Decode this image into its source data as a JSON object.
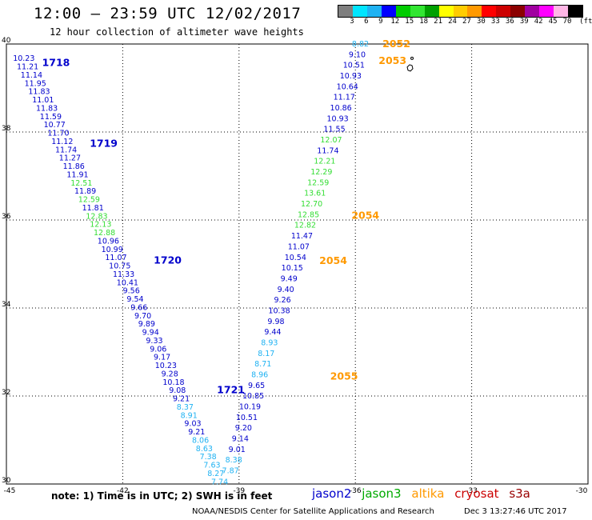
{
  "header": {
    "title": "12:00 – 23:59 UTC 12/02/2017",
    "subtitle": "12 hour collection of altimeter wave heights"
  },
  "legend": {
    "unit": "(ft)",
    "thresholds": [
      "3",
      "6",
      "9",
      "12",
      "15",
      "18",
      "21",
      "24",
      "27",
      "30",
      "33",
      "36",
      "39",
      "42",
      "45",
      "70"
    ],
    "colors": [
      "#7f7f7f",
      "#00e5ff",
      "#1fb2f2",
      "#0000ff",
      "#00cc00",
      "#32e632",
      "#00a000",
      "#ffff00",
      "#ffcc00",
      "#ff9900",
      "#ff0000",
      "#cc0000",
      "#8b0000",
      "#a000a0",
      "#ff00ff",
      "#ffb6e6",
      "#000000"
    ]
  },
  "axes": {
    "x_ticks": [
      "-45",
      "-42",
      "-39",
      "-36",
      "-33",
      "-30"
    ],
    "y_ticks": [
      "40",
      "38",
      "36",
      "34",
      "32",
      "30"
    ]
  },
  "satellite_colors": {
    "jason2": "#0000cc",
    "jason3": "#00aa00",
    "altika": "#ff9900",
    "cryosat": "#cc0000",
    "s3a": "#990000"
  },
  "height_colors": {
    "c9": "#1fb2f2",
    "c12": "#0000cc",
    "c15": "#33dd33"
  },
  "tracks": [
    {
      "pass": "1718",
      "values": [
        [
          "10.23",
          "c12"
        ],
        [
          "11.21",
          "c12"
        ],
        [
          "11.14",
          "c12"
        ],
        [
          "11.95",
          "c12"
        ],
        [
          "11.83",
          "c12"
        ],
        [
          "11.01",
          "c12"
        ],
        [
          "11.83",
          "c12"
        ],
        [
          "11.59",
          "c12"
        ],
        [
          "10.77",
          "c12"
        ],
        [
          "11.70",
          "c12"
        ]
      ]
    },
    {
      "pass": "1719",
      "values": [
        [
          "11.12",
          "c12"
        ],
        [
          "11.74",
          "c12"
        ],
        [
          "11.27",
          "c12"
        ],
        [
          "11.86",
          "c12"
        ],
        [
          "11.91",
          "c12"
        ],
        [
          "12.51",
          "c15"
        ],
        [
          "11.89",
          "c12"
        ],
        [
          "12.59",
          "c15"
        ],
        [
          "11.81",
          "c12"
        ],
        [
          "12.83",
          "c15"
        ],
        [
          "12.13",
          "c15"
        ],
        [
          "12.88",
          "c15"
        ],
        [
          "10.96",
          "c12"
        ],
        [
          "10.99",
          "c12"
        ],
        [
          "11.07",
          "c12"
        ]
      ]
    },
    {
      "pass": "1720",
      "values": [
        [
          "10.75",
          "c12"
        ],
        [
          "11.33",
          "c12"
        ],
        [
          "10.41",
          "c12"
        ],
        [
          "9.56",
          "c12"
        ],
        [
          "9.54",
          "c12"
        ],
        [
          "9.66",
          "c12"
        ],
        [
          "9.70",
          "c12"
        ],
        [
          "9.89",
          "c12"
        ],
        [
          "9.94",
          "c12"
        ],
        [
          "9.33",
          "c12"
        ],
        [
          "9.06",
          "c12"
        ],
        [
          "9.17",
          "c12"
        ],
        [
          "10.23",
          "c12"
        ],
        [
          "9.28",
          "c12"
        ],
        [
          "10.18",
          "c12"
        ]
      ]
    },
    {
      "pass": "1721",
      "values": [
        [
          "9.08",
          "c12"
        ],
        [
          "9.21",
          "c12"
        ],
        [
          "8.37",
          "c9"
        ],
        [
          "8.91",
          "c9"
        ],
        [
          "9.03",
          "c12"
        ],
        [
          "9.21",
          "c12"
        ],
        [
          "8.06",
          "c9"
        ],
        [
          "8.63",
          "c9"
        ],
        [
          "7.38",
          "c9"
        ],
        [
          "7.63",
          "c9"
        ],
        [
          "8.27",
          "c9"
        ],
        [
          "7.74",
          "c9"
        ]
      ]
    },
    {
      "pass": "2055",
      "values": [
        [
          "7.87",
          "c9"
        ],
        [
          "8.38",
          "c9"
        ],
        [
          "9.01",
          "c12"
        ],
        [
          "9.14",
          "c12"
        ],
        [
          "9.20",
          "c12"
        ],
        [
          "10.51",
          "c12"
        ],
        [
          "10.19",
          "c12"
        ],
        [
          "10.85",
          "c12"
        ],
        [
          "9.65",
          "c12"
        ],
        [
          "8.96",
          "c9"
        ],
        [
          "8.71",
          "c9"
        ],
        [
          "8.17",
          "c9"
        ],
        [
          "8.93",
          "c9"
        ],
        [
          "9.44",
          "c12"
        ],
        [
          "9.98",
          "c12"
        ],
        [
          "10.38",
          "c12"
        ]
      ]
    },
    {
      "pass": "2054",
      "values": [
        [
          "9.26",
          "c12"
        ],
        [
          "9.40",
          "c12"
        ],
        [
          "9.49",
          "c12"
        ],
        [
          "10.15",
          "c12"
        ],
        [
          "10.54",
          "c12"
        ],
        [
          "11.07",
          "c12"
        ],
        [
          "11.47",
          "c12"
        ],
        [
          "12.82",
          "c15"
        ]
      ]
    },
    {
      "pass": "2054",
      "values": [
        [
          "12.85",
          "c15"
        ],
        [
          "12.70",
          "c15"
        ],
        [
          "13.61",
          "c15"
        ],
        [
          "12.59",
          "c15"
        ],
        [
          "12.29",
          "c15"
        ],
        [
          "12.21",
          "c15"
        ],
        [
          "11.74",
          "c12"
        ],
        [
          "12.07",
          "c15"
        ],
        [
          "11.55",
          "c12"
        ],
        [
          "10.93",
          "c12"
        ],
        [
          "10.86",
          "c12"
        ],
        [
          "11.17",
          "c12"
        ],
        [
          "10.64",
          "c12"
        ],
        [
          "10.93",
          "c12"
        ]
      ]
    },
    {
      "pass": "2053",
      "values": [
        [
          "10.51",
          "c12"
        ]
      ]
    },
    {
      "pass": "2052",
      "values": [
        [
          "9.10",
          "c12"
        ],
        [
          "8.82",
          "c9"
        ]
      ]
    }
  ],
  "pass_labels": [
    {
      "text": "1718",
      "sat": "jason2",
      "lon": -44.08,
      "lat": 39.57
    },
    {
      "text": "1719",
      "sat": "jason2",
      "lon": -42.85,
      "lat": 37.74
    },
    {
      "text": "1720",
      "sat": "jason2",
      "lon": -41.2,
      "lat": 35.08
    },
    {
      "text": "1721",
      "sat": "jason2",
      "lon": -39.57,
      "lat": 32.14
    },
    {
      "text": "2055",
      "sat": "altika",
      "lon": -36.65,
      "lat": 32.45
    },
    {
      "text": "2054",
      "sat": "altika",
      "lon": -36.93,
      "lat": 35.07
    },
    {
      "text": "2054",
      "sat": "altika",
      "lon": -36.1,
      "lat": 36.1
    },
    {
      "text": "2053",
      "sat": "altika",
      "lon": -35.4,
      "lat": 39.62
    },
    {
      "text": "2052",
      "sat": "altika",
      "lon": -35.3,
      "lat": 40.0
    }
  ],
  "island": {
    "lon": -34.58,
    "lat": 39.62
  },
  "footer": {
    "note": "note: 1) Time is in UTC; 2) SWH is in feet",
    "sats": [
      "jason2",
      "jason3",
      "altika",
      "cryosat",
      "s3a"
    ],
    "credit": "NOAA/NESDIS Center for Satellite Applications and Research",
    "timestamp": "Dec  3 13:27:46 UTC 2017"
  }
}
